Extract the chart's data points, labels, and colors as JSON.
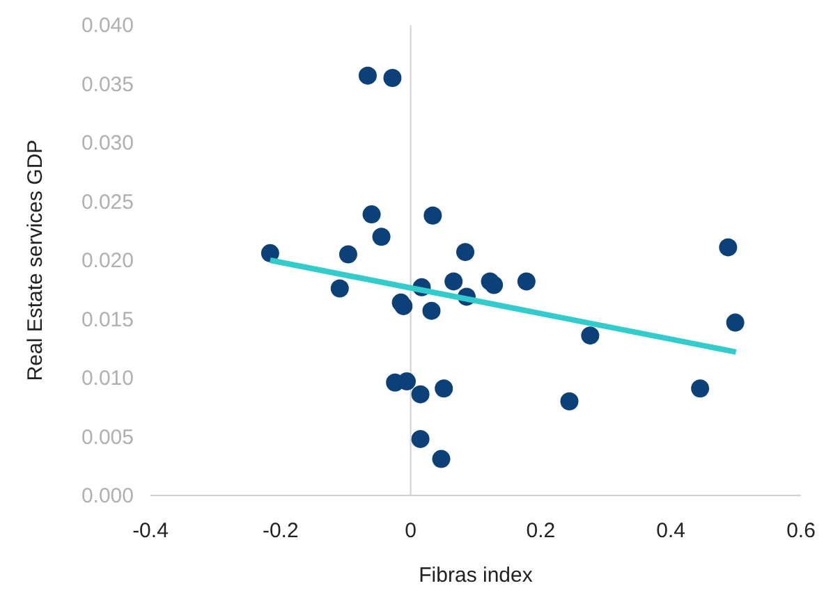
{
  "chart_data": {
    "type": "scatter",
    "xlabel": "Fibras index",
    "ylabel": "Real Estate services GDP",
    "xlim": [
      -0.4,
      0.6
    ],
    "xticks": [
      -0.4,
      -0.2,
      0,
      0.2,
      0.4,
      0.6
    ],
    "ylim": [
      0,
      0.04
    ],
    "yticks": [
      {
        "value": 0,
        "label": "0.000"
      },
      {
        "value": 0.005,
        "label": "0.005"
      },
      {
        "value": 0.01,
        "label": "0.010"
      },
      {
        "value": 0.015,
        "label": "0.015"
      },
      {
        "value": 0.02,
        "label": "0.020"
      },
      {
        "value": 0.025,
        "label": "0.025"
      },
      {
        "value": 0.03,
        "label": "0.030"
      },
      {
        "value": 0.035,
        "label": "0.035"
      },
      {
        "value": 0.04,
        "label": "0.040"
      }
    ],
    "marker": "circle",
    "series": [
      {
        "color": "#0b4178",
        "x": [
          -0.216,
          -0.066,
          -0.028,
          -0.06,
          -0.045,
          -0.096,
          -0.109,
          0.034,
          0.084,
          0.066,
          0.086,
          0.017,
          -0.015,
          -0.011,
          0.032,
          0.122,
          0.128,
          0.178,
          0.276,
          0.488,
          0.499,
          0.445,
          0.244,
          -0.024,
          -0.006,
          0.015,
          0.051,
          0.015,
          0.047
        ],
        "values": [
          0.0206,
          0.0357,
          0.0355,
          0.0239,
          0.022,
          0.0205,
          0.0176,
          0.0238,
          0.0207,
          0.0182,
          0.0169,
          0.0177,
          0.0164,
          0.0161,
          0.0157,
          0.0182,
          0.0179,
          0.0182,
          0.0136,
          0.0211,
          0.0147,
          0.0091,
          0.008,
          0.0096,
          0.0097,
          0.0086,
          0.0091,
          0.0048,
          0.0031
        ]
      },
      {
        "type": "line",
        "color": "#33cccc",
        "x": [
          -0.216,
          0.5
        ],
        "values": [
          0.02,
          0.0122
        ],
        "marker": "none"
      }
    ]
  }
}
